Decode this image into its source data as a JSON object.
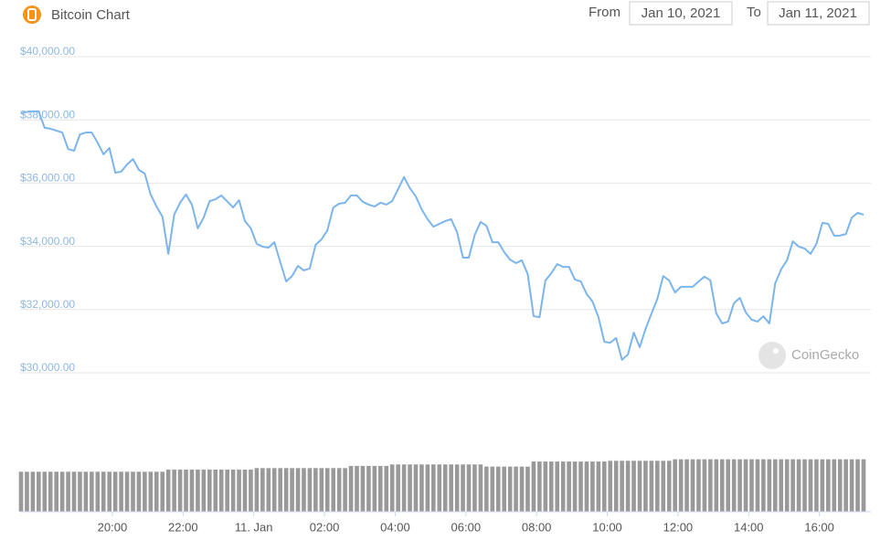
{
  "chart_data": {
    "type": "line",
    "title": "Bitcoin Chart",
    "from_label": "From",
    "from_date": "Jan 10, 2021",
    "to_label": "To",
    "to_date": "Jan 11, 2021",
    "watermark": "CoinGecko",
    "color": "#7cb5ec",
    "x": [
      "17:25",
      "17:35",
      "17:45",
      "17:55",
      "18:05",
      "18:15",
      "18:25",
      "18:35",
      "18:45",
      "18:55",
      "19:05",
      "19:15",
      "19:25",
      "19:35",
      "19:45",
      "19:55",
      "20:05",
      "20:15",
      "20:25",
      "20:35",
      "20:45",
      "20:55",
      "21:05",
      "21:15",
      "21:25",
      "21:35",
      "21:45",
      "21:55",
      "22:05",
      "22:15",
      "22:25",
      "22:35",
      "22:45",
      "22:55",
      "23:05",
      "23:15",
      "23:25",
      "23:35",
      "23:45",
      "23:55",
      "00:05",
      "00:15",
      "00:25",
      "00:35",
      "00:45",
      "00:55",
      "01:05",
      "01:15",
      "01:25",
      "01:35",
      "01:45",
      "01:55",
      "02:05",
      "02:15",
      "02:25",
      "02:35",
      "02:45",
      "02:55",
      "03:05",
      "03:15",
      "03:25",
      "03:35",
      "03:45",
      "03:55",
      "04:05",
      "04:15",
      "04:25",
      "04:35",
      "04:45",
      "04:55",
      "05:05",
      "05:15",
      "05:25",
      "05:35",
      "05:45",
      "05:55",
      "06:05",
      "06:15",
      "06:25",
      "06:35",
      "06:45",
      "06:55",
      "07:05",
      "07:15",
      "07:25",
      "07:35",
      "07:45",
      "07:55",
      "08:05",
      "08:15",
      "08:25",
      "08:35",
      "08:45",
      "08:55",
      "09:05",
      "09:15",
      "09:25",
      "09:35",
      "09:45",
      "09:55",
      "10:05",
      "10:15",
      "10:25",
      "10:35",
      "10:45",
      "10:55",
      "11:05",
      "11:15",
      "11:25",
      "11:35",
      "11:45",
      "11:55",
      "12:05",
      "12:15",
      "12:25",
      "12:35",
      "12:45",
      "12:55",
      "13:05",
      "13:15",
      "13:25",
      "13:35",
      "13:45",
      "13:55",
      "14:05",
      "14:15",
      "14:25",
      "14:35",
      "14:45",
      "14:55",
      "15:05",
      "15:15",
      "15:25",
      "15:35",
      "15:45",
      "15:55",
      "16:05",
      "16:15",
      "16:25",
      "16:35",
      "16:45",
      "16:55",
      "17:05",
      "17:15"
    ],
    "values": [
      38210,
      38250,
      38270,
      38270,
      37750,
      37720,
      37660,
      37600,
      37080,
      37020,
      37540,
      37600,
      37600,
      37280,
      36910,
      37110,
      36330,
      36360,
      36590,
      36760,
      36420,
      36300,
      35640,
      35260,
      34940,
      33760,
      35000,
      35380,
      35640,
      35320,
      34570,
      34910,
      35430,
      35490,
      35610,
      35420,
      35230,
      35460,
      34800,
      34570,
      34080,
      33990,
      33960,
      34130,
      33500,
      32890,
      33060,
      33380,
      33240,
      33300,
      34050,
      34220,
      34510,
      35230,
      35350,
      35380,
      35610,
      35610,
      35410,
      35320,
      35260,
      35380,
      35320,
      35430,
      35810,
      36190,
      35840,
      35580,
      35170,
      34860,
      34620,
      34710,
      34800,
      34860,
      34450,
      33640,
      33640,
      34360,
      34770,
      34650,
      34130,
      34130,
      33820,
      33580,
      33470,
      33560,
      33120,
      31790,
      31760,
      32920,
      33150,
      33440,
      33350,
      33350,
      32950,
      32890,
      32490,
      32250,
      31760,
      30980,
      30950,
      31100,
      30410,
      30580,
      31270,
      30810,
      31390,
      31870,
      32340,
      33060,
      32920,
      32540,
      32720,
      32720,
      32720,
      32890,
      33040,
      32920,
      31880,
      31560,
      31620,
      32200,
      32370,
      31910,
      31680,
      31620,
      31790,
      31560,
      32830,
      33270,
      33560,
      34160,
      33990,
      33930,
      33760,
      34080,
      34740,
      34710,
      34340,
      34340,
      34390,
      34910,
      35060,
      35000
    ],
    "xlim": [
      "17:25",
      "17:15"
    ],
    "xticks": [
      "20:00",
      "22:00",
      {
        "value": "00:00",
        "label": "11. Jan"
      },
      "02:00",
      "04:00",
      "06:00",
      "08:00",
      "10:00",
      "12:00",
      "14:00",
      "16:00"
    ],
    "ylim": [
      30000,
      40000
    ],
    "yticks": [
      {
        "value": 30000,
        "label": "$30,000.00"
      },
      {
        "value": 32000,
        "label": "$32,000.00"
      },
      {
        "value": 34000,
        "label": "$34,000.00"
      },
      {
        "value": 36000,
        "label": "$36,000.00"
      },
      {
        "value": 38000,
        "label": "$38,000.00"
      },
      {
        "value": 40000,
        "label": "$40,000.00"
      }
    ],
    "grid": true,
    "volume": {
      "color": "#999999",
      "y2lim": [
        0,
        100
      ],
      "values": [
        55,
        55,
        55,
        55,
        55,
        55,
        55,
        55,
        55,
        55,
        55,
        55,
        55,
        55,
        55,
        55,
        55,
        55,
        55,
        55,
        55,
        55,
        55,
        55,
        55,
        58,
        58,
        58,
        58,
        58,
        58,
        58,
        58,
        58,
        58,
        58,
        58,
        58,
        58,
        58,
        60,
        60,
        60,
        60,
        60,
        60,
        60,
        60,
        60,
        60,
        60,
        60,
        60,
        60,
        60,
        60,
        63,
        63,
        63,
        63,
        63,
        63,
        63,
        65,
        65,
        65,
        65,
        65,
        65,
        65,
        65,
        65,
        65,
        65,
        65,
        65,
        65,
        65,
        65,
        62,
        62,
        62,
        62,
        62,
        62,
        62,
        62,
        69,
        69,
        69,
        69,
        69,
        69,
        69,
        69,
        69,
        69,
        69,
        69,
        69,
        70,
        70,
        70,
        70,
        70,
        70,
        70,
        70,
        70,
        70,
        70,
        72,
        72,
        72,
        72,
        72,
        72,
        72,
        72,
        72,
        72,
        72,
        72,
        72,
        72,
        72,
        72,
        72,
        72,
        72,
        72,
        72,
        72,
        72,
        72,
        72,
        72,
        72,
        72,
        72,
        72,
        72,
        72,
        72
      ]
    }
  }
}
